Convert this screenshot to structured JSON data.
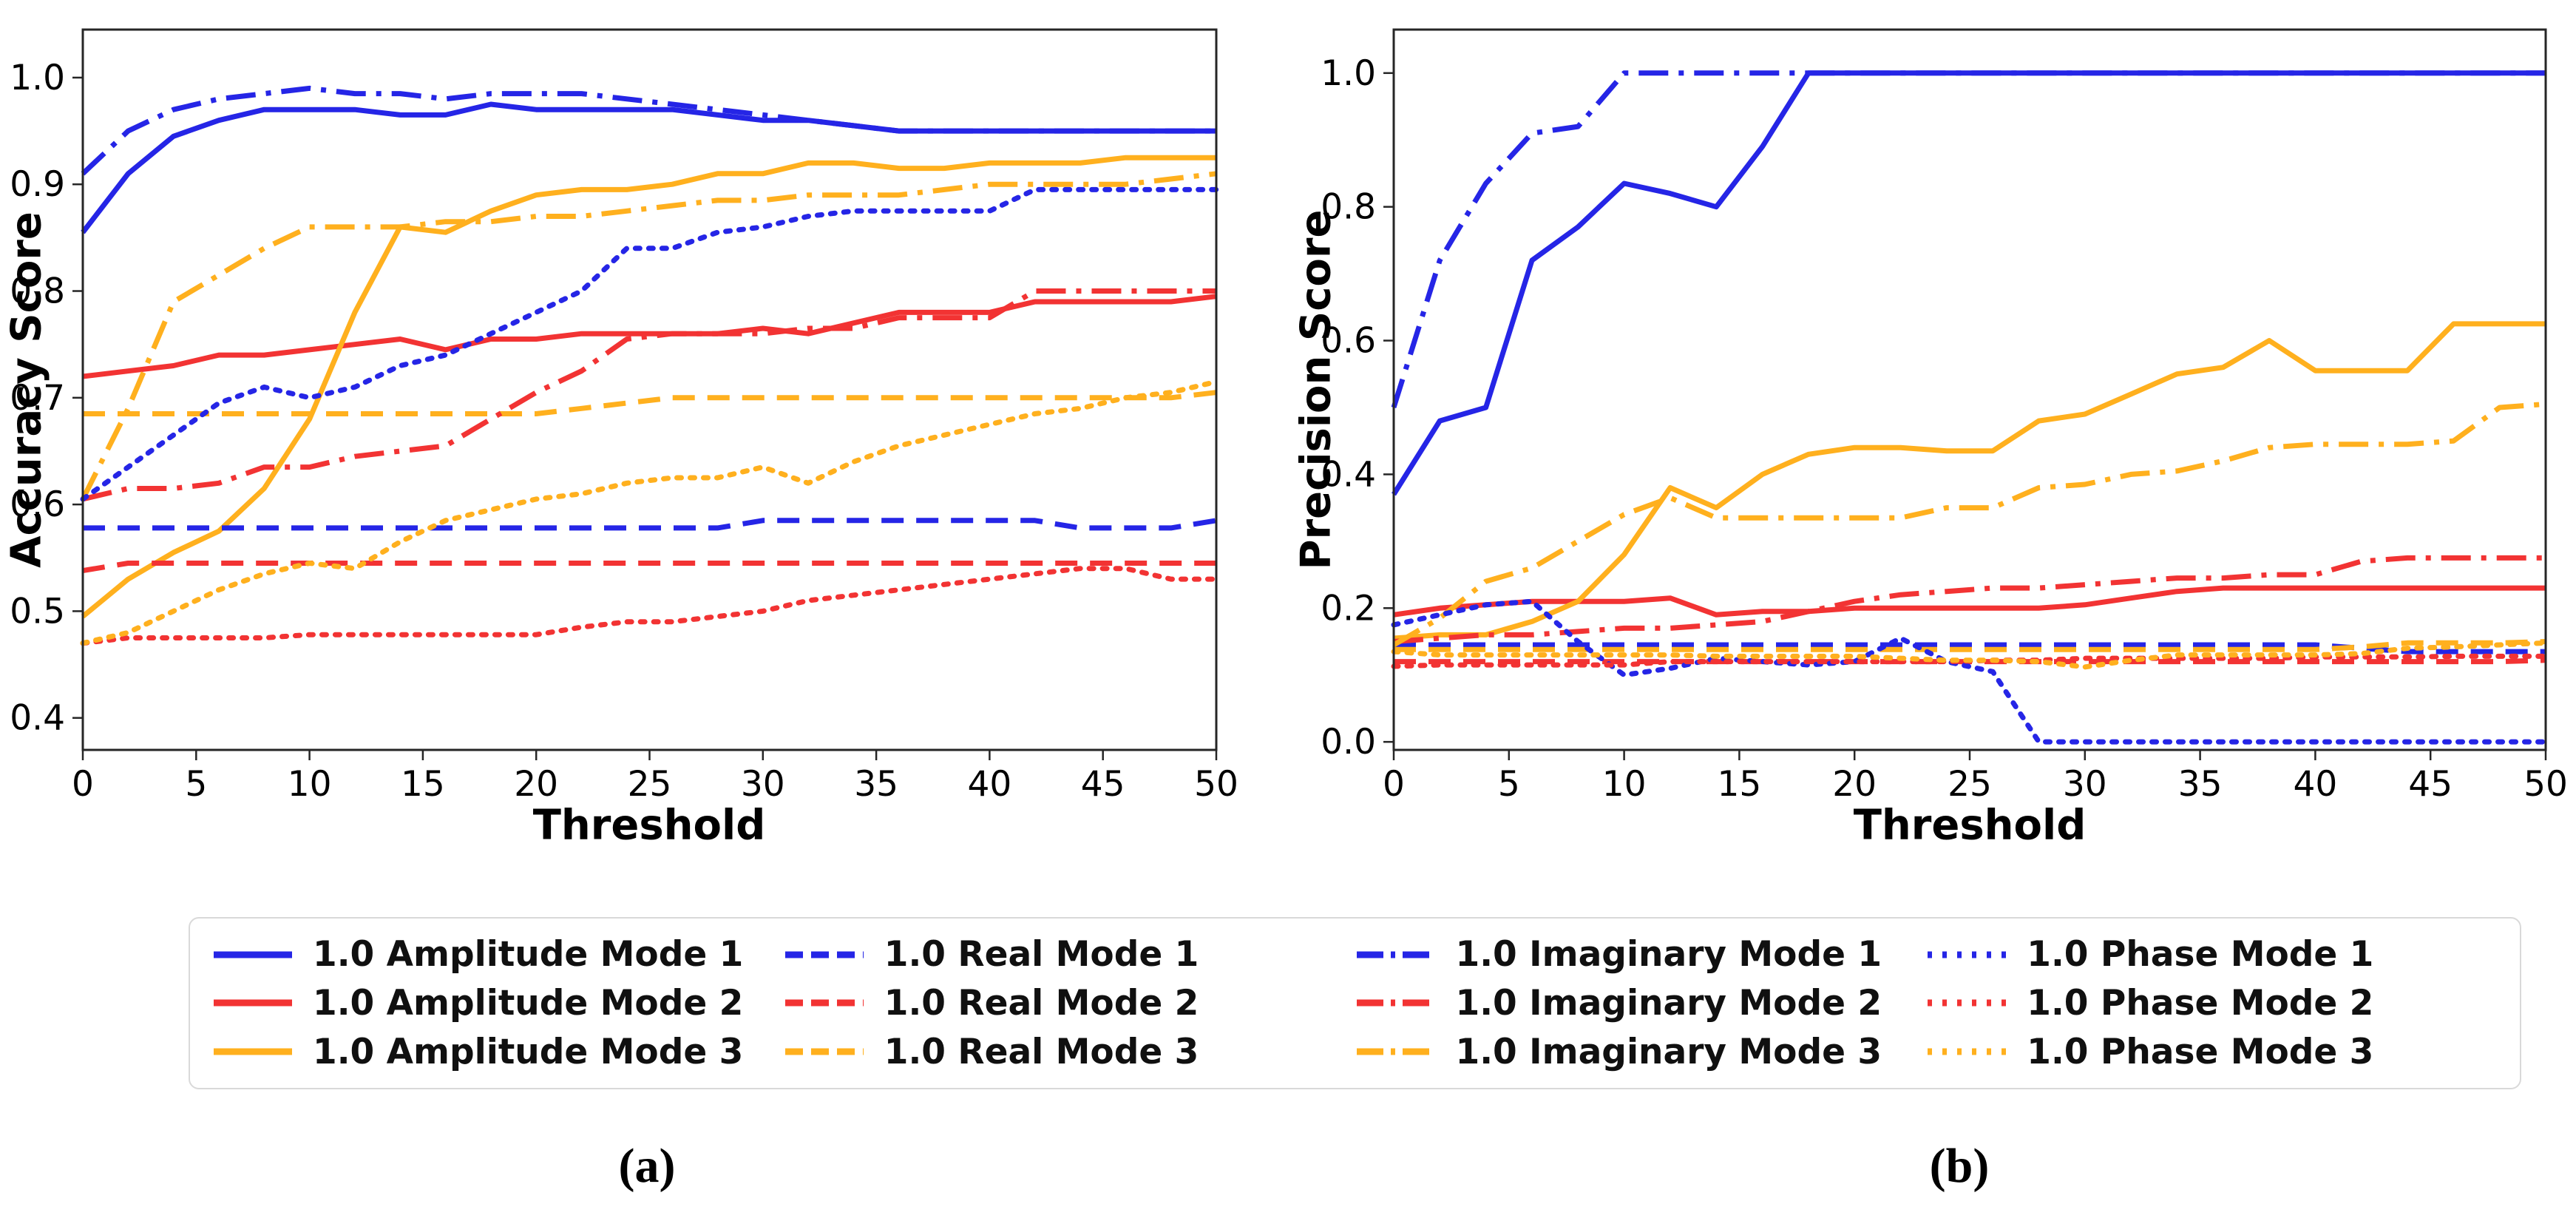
{
  "colors": {
    "mode1": "#2525e6",
    "mode2": "#f23333",
    "mode3": "#ffb01e"
  },
  "panels": {
    "a": "(a)",
    "b": "(b)"
  },
  "legend": {
    "items": [
      {
        "label": "1.0 Amplitude Mode 1",
        "color": "mode1",
        "style": "solid"
      },
      {
        "label": "1.0 Amplitude Mode 2",
        "color": "mode2",
        "style": "solid"
      },
      {
        "label": "1.0 Amplitude Mode 3",
        "color": "mode3",
        "style": "solid"
      },
      {
        "label": "1.0 Real Mode 1",
        "color": "mode1",
        "style": "dashed"
      },
      {
        "label": "1.0 Real Mode 2",
        "color": "mode2",
        "style": "dashed"
      },
      {
        "label": "1.0 Real Mode 3",
        "color": "mode3",
        "style": "dashed"
      },
      {
        "label": "1.0 Imaginary Mode 1",
        "color": "mode1",
        "style": "dashdot"
      },
      {
        "label": "1.0 Imaginary Mode 2",
        "color": "mode2",
        "style": "dashdot"
      },
      {
        "label": "1.0 Imaginary Mode 3",
        "color": "mode3",
        "style": "dashdot"
      },
      {
        "label": "1.0 Phase Mode 1",
        "color": "mode1",
        "style": "dotted"
      },
      {
        "label": "1.0 Phase Mode 2",
        "color": "mode2",
        "style": "dotted"
      },
      {
        "label": "1.0 Phase Mode 3",
        "color": "mode3",
        "style": "dotted"
      }
    ]
  },
  "chart_data": [
    {
      "id": "accuracy",
      "type": "line",
      "title": "",
      "xlabel": "Threshold",
      "ylabel": "Accuracy Score",
      "xlim": [
        0,
        50
      ],
      "ylim": [
        0.37,
        1.045
      ],
      "grid": false,
      "xticks": [
        "0",
        "5",
        "10",
        "15",
        "20",
        "25",
        "30",
        "35",
        "40",
        "45",
        "50"
      ],
      "yticks": [
        "0.4",
        "0.5",
        "0.6",
        "0.7",
        "0.8",
        "0.9",
        "1.0"
      ],
      "x": [
        0,
        2,
        4,
        6,
        8,
        10,
        12,
        14,
        16,
        18,
        20,
        22,
        24,
        26,
        28,
        30,
        32,
        34,
        36,
        38,
        40,
        42,
        44,
        46,
        48,
        50
      ],
      "series": [
        {
          "name": "1.0 Amplitude Mode 1",
          "color": "mode1",
          "style": "solid",
          "values": [
            0.855,
            0.91,
            0.945,
            0.96,
            0.97,
            0.97,
            0.97,
            0.965,
            0.965,
            0.975,
            0.97,
            0.97,
            0.97,
            0.97,
            0.965,
            0.96,
            0.96,
            0.955,
            0.95,
            0.95,
            0.95,
            0.95,
            0.95,
            0.95,
            0.95,
            0.95
          ]
        },
        {
          "name": "1.0 Amplitude Mode 2",
          "color": "mode2",
          "style": "solid",
          "values": [
            0.72,
            0.725,
            0.73,
            0.74,
            0.74,
            0.745,
            0.75,
            0.755,
            0.745,
            0.755,
            0.755,
            0.76,
            0.76,
            0.76,
            0.76,
            0.765,
            0.76,
            0.77,
            0.78,
            0.78,
            0.78,
            0.79,
            0.79,
            0.79,
            0.79,
            0.795
          ]
        },
        {
          "name": "1.0 Amplitude Mode 3",
          "color": "mode3",
          "style": "solid",
          "values": [
            0.495,
            0.53,
            0.555,
            0.575,
            0.615,
            0.68,
            0.78,
            0.86,
            0.855,
            0.875,
            0.89,
            0.895,
            0.895,
            0.9,
            0.91,
            0.91,
            0.92,
            0.92,
            0.915,
            0.915,
            0.92,
            0.92,
            0.92,
            0.925,
            0.925,
            0.925
          ]
        },
        {
          "name": "1.0 Real Mode 1",
          "color": "mode1",
          "style": "dashed",
          "values": [
            0.578,
            0.578,
            0.578,
            0.578,
            0.578,
            0.578,
            0.578,
            0.578,
            0.578,
            0.578,
            0.578,
            0.578,
            0.578,
            0.578,
            0.578,
            0.585,
            0.585,
            0.585,
            0.585,
            0.585,
            0.585,
            0.585,
            0.578,
            0.578,
            0.578,
            0.585
          ]
        },
        {
          "name": "1.0 Real Mode 2",
          "color": "mode2",
          "style": "dashed",
          "values": [
            0.538,
            0.545,
            0.545,
            0.545,
            0.545,
            0.545,
            0.545,
            0.545,
            0.545,
            0.545,
            0.545,
            0.545,
            0.545,
            0.545,
            0.545,
            0.545,
            0.545,
            0.545,
            0.545,
            0.545,
            0.545,
            0.545,
            0.545,
            0.545,
            0.545,
            0.545
          ]
        },
        {
          "name": "1.0 Real Mode 3",
          "color": "mode3",
          "style": "dashed",
          "values": [
            0.685,
            0.685,
            0.685,
            0.685,
            0.685,
            0.685,
            0.685,
            0.685,
            0.685,
            0.685,
            0.685,
            0.69,
            0.695,
            0.7,
            0.7,
            0.7,
            0.7,
            0.7,
            0.7,
            0.7,
            0.7,
            0.7,
            0.7,
            0.7,
            0.7,
            0.705
          ]
        },
        {
          "name": "1.0 Imaginary Mode 1",
          "color": "mode1",
          "style": "dashdot",
          "values": [
            0.91,
            0.95,
            0.97,
            0.98,
            0.985,
            0.99,
            0.985,
            0.985,
            0.98,
            0.985,
            0.985,
            0.985,
            0.98,
            0.975,
            0.97,
            0.965,
            0.96,
            0.955,
            0.95,
            0.95,
            0.95,
            0.95,
            0.95,
            0.95,
            0.95,
            0.95
          ]
        },
        {
          "name": "1.0 Imaginary Mode 2",
          "color": "mode2",
          "style": "dashdot",
          "values": [
            0.605,
            0.615,
            0.615,
            0.62,
            0.635,
            0.635,
            0.645,
            0.65,
            0.655,
            0.68,
            0.705,
            0.725,
            0.755,
            0.76,
            0.76,
            0.76,
            0.765,
            0.765,
            0.775,
            0.775,
            0.775,
            0.8,
            0.8,
            0.8,
            0.8,
            0.8
          ]
        },
        {
          "name": "1.0 Imaginary Mode 3",
          "color": "mode3",
          "style": "dashdot",
          "values": [
            0.605,
            0.69,
            0.79,
            0.815,
            0.84,
            0.86,
            0.86,
            0.86,
            0.865,
            0.865,
            0.87,
            0.87,
            0.875,
            0.88,
            0.885,
            0.885,
            0.89,
            0.89,
            0.89,
            0.895,
            0.9,
            0.9,
            0.9,
            0.9,
            0.905,
            0.91
          ]
        },
        {
          "name": "1.0 Phase Mode 1",
          "color": "mode1",
          "style": "dotted",
          "values": [
            0.605,
            0.635,
            0.665,
            0.695,
            0.71,
            0.7,
            0.71,
            0.73,
            0.74,
            0.76,
            0.78,
            0.8,
            0.84,
            0.84,
            0.855,
            0.86,
            0.87,
            0.875,
            0.875,
            0.875,
            0.875,
            0.895,
            0.895,
            0.895,
            0.895,
            0.895
          ]
        },
        {
          "name": "1.0 Phase Mode 2",
          "color": "mode2",
          "style": "dotted",
          "values": [
            0.47,
            0.475,
            0.475,
            0.475,
            0.475,
            0.478,
            0.478,
            0.478,
            0.478,
            0.478,
            0.478,
            0.485,
            0.49,
            0.49,
            0.495,
            0.5,
            0.51,
            0.515,
            0.52,
            0.525,
            0.53,
            0.535,
            0.54,
            0.54,
            0.53,
            0.53
          ]
        },
        {
          "name": "1.0 Phase Mode 3",
          "color": "mode3",
          "style": "dotted",
          "values": [
            0.47,
            0.48,
            0.5,
            0.52,
            0.535,
            0.545,
            0.54,
            0.565,
            0.585,
            0.595,
            0.605,
            0.61,
            0.62,
            0.625,
            0.625,
            0.635,
            0.62,
            0.64,
            0.655,
            0.665,
            0.675,
            0.685,
            0.69,
            0.7,
            0.705,
            0.715
          ]
        }
      ]
    },
    {
      "id": "precision",
      "type": "line",
      "title": "",
      "xlabel": "Threshold",
      "ylabel": "Precision Score",
      "xlim": [
        0,
        50
      ],
      "ylim": [
        -0.012,
        1.065
      ],
      "grid": false,
      "xticks": [
        "0",
        "5",
        "10",
        "15",
        "20",
        "25",
        "30",
        "35",
        "40",
        "45",
        "50"
      ],
      "yticks": [
        "0.0",
        "0.2",
        "0.4",
        "0.6",
        "0.8",
        "1.0"
      ],
      "x": [
        0,
        2,
        4,
        6,
        8,
        10,
        12,
        14,
        16,
        18,
        20,
        22,
        24,
        26,
        28,
        30,
        32,
        34,
        36,
        38,
        40,
        42,
        44,
        46,
        48,
        50
      ],
      "series": [
        {
          "name": "1.0 Amplitude Mode 1",
          "color": "mode1",
          "style": "solid",
          "values": [
            0.37,
            0.48,
            0.5,
            0.72,
            0.77,
            0.835,
            0.82,
            0.8,
            0.89,
            1.0,
            1.0,
            1.0,
            1.0,
            1.0,
            1.0,
            1.0,
            1.0,
            1.0,
            1.0,
            1.0,
            1.0,
            1.0,
            1.0,
            1.0,
            1.0,
            1.0
          ]
        },
        {
          "name": "1.0 Amplitude Mode 2",
          "color": "mode2",
          "style": "solid",
          "values": [
            0.19,
            0.2,
            0.205,
            0.21,
            0.21,
            0.21,
            0.215,
            0.19,
            0.195,
            0.195,
            0.2,
            0.2,
            0.2,
            0.2,
            0.2,
            0.205,
            0.215,
            0.225,
            0.23,
            0.23,
            0.23,
            0.23,
            0.23,
            0.23,
            0.23,
            0.23
          ]
        },
        {
          "name": "1.0 Amplitude Mode 3",
          "color": "mode3",
          "style": "solid",
          "values": [
            0.155,
            0.16,
            0.16,
            0.18,
            0.21,
            0.28,
            0.38,
            0.35,
            0.4,
            0.43,
            0.44,
            0.44,
            0.435,
            0.435,
            0.48,
            0.49,
            0.52,
            0.55,
            0.56,
            0.6,
            0.555,
            0.555,
            0.555,
            0.625,
            0.625,
            0.625
          ]
        },
        {
          "name": "1.0 Real Mode 1",
          "color": "mode1",
          "style": "dashed",
          "values": [
            0.145,
            0.145,
            0.145,
            0.145,
            0.145,
            0.145,
            0.145,
            0.145,
            0.145,
            0.145,
            0.145,
            0.145,
            0.145,
            0.145,
            0.145,
            0.145,
            0.145,
            0.145,
            0.145,
            0.145,
            0.145,
            0.14,
            0.135,
            0.135,
            0.135,
            0.135
          ]
        },
        {
          "name": "1.0 Real Mode 2",
          "color": "mode2",
          "style": "dashed",
          "values": [
            0.12,
            0.12,
            0.12,
            0.12,
            0.12,
            0.12,
            0.12,
            0.12,
            0.12,
            0.12,
            0.12,
            0.12,
            0.12,
            0.12,
            0.12,
            0.12,
            0.12,
            0.12,
            0.12,
            0.12,
            0.12,
            0.12,
            0.12,
            0.12,
            0.12,
            0.122
          ]
        },
        {
          "name": "1.0 Real Mode 3",
          "color": "mode3",
          "style": "dashed",
          "values": [
            0.138,
            0.138,
            0.138,
            0.138,
            0.138,
            0.138,
            0.138,
            0.138,
            0.138,
            0.138,
            0.138,
            0.138,
            0.138,
            0.138,
            0.138,
            0.138,
            0.138,
            0.138,
            0.138,
            0.138,
            0.138,
            0.142,
            0.148,
            0.148,
            0.148,
            0.15
          ]
        },
        {
          "name": "1.0 Imaginary Mode 1",
          "color": "mode1",
          "style": "dashdot",
          "values": [
            0.5,
            0.72,
            0.835,
            0.91,
            0.92,
            1.0,
            1.0,
            1.0,
            1.0,
            1.0,
            1.0,
            1.0,
            1.0,
            1.0,
            1.0,
            1.0,
            1.0,
            1.0,
            1.0,
            1.0,
            1.0,
            1.0,
            1.0,
            1.0,
            1.0,
            1.0
          ]
        },
        {
          "name": "1.0 Imaginary Mode 2",
          "color": "mode2",
          "style": "dashdot",
          "values": [
            0.15,
            0.155,
            0.16,
            0.16,
            0.165,
            0.17,
            0.17,
            0.175,
            0.18,
            0.195,
            0.21,
            0.22,
            0.225,
            0.23,
            0.23,
            0.235,
            0.24,
            0.245,
            0.245,
            0.25,
            0.25,
            0.27,
            0.275,
            0.275,
            0.275,
            0.275
          ]
        },
        {
          "name": "1.0 Imaginary Mode 3",
          "color": "mode3",
          "style": "dashdot",
          "values": [
            0.145,
            0.185,
            0.24,
            0.26,
            0.3,
            0.34,
            0.365,
            0.335,
            0.335,
            0.335,
            0.335,
            0.335,
            0.35,
            0.35,
            0.38,
            0.385,
            0.4,
            0.405,
            0.42,
            0.44,
            0.445,
            0.445,
            0.445,
            0.45,
            0.5,
            0.505
          ]
        },
        {
          "name": "1.0 Phase Mode 1",
          "color": "mode1",
          "style": "dotted",
          "values": [
            0.175,
            0.19,
            0.205,
            0.21,
            0.15,
            0.1,
            0.11,
            0.125,
            0.12,
            0.115,
            0.12,
            0.155,
            0.12,
            0.105,
            0.0,
            0.0,
            0.0,
            0.0,
            0.0,
            0.0,
            0.0,
            0.0,
            0.0,
            0.0,
            0.0,
            0.0
          ]
        },
        {
          "name": "1.0 Phase Mode 2",
          "color": "mode2",
          "style": "dotted",
          "values": [
            0.113,
            0.115,
            0.115,
            0.115,
            0.115,
            0.115,
            0.12,
            0.12,
            0.12,
            0.12,
            0.12,
            0.12,
            0.12,
            0.122,
            0.122,
            0.125,
            0.125,
            0.125,
            0.125,
            0.125,
            0.127,
            0.127,
            0.127,
            0.128,
            0.128,
            0.128
          ]
        },
        {
          "name": "1.0 Phase Mode 3",
          "color": "mode3",
          "style": "dotted",
          "values": [
            0.135,
            0.13,
            0.13,
            0.13,
            0.13,
            0.13,
            0.13,
            0.128,
            0.128,
            0.128,
            0.128,
            0.125,
            0.122,
            0.122,
            0.12,
            0.112,
            0.122,
            0.13,
            0.13,
            0.13,
            0.13,
            0.132,
            0.14,
            0.142,
            0.145,
            0.148
          ]
        }
      ]
    }
  ]
}
